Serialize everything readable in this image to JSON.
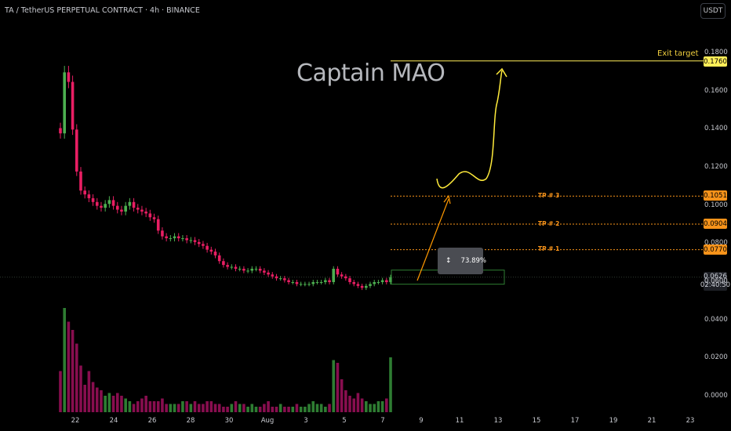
{
  "header": {
    "symbol_title": "TA / TetherUS PERPETUAL CONTRACT · 4h · BINANCE",
    "currency": "USDT"
  },
  "watermark": "Captain MAO",
  "annotations": {
    "exit_target": "Exit target",
    "tp_levels": [
      "TP # 3",
      "TP # 2",
      "TP # 1"
    ],
    "percent_change": "73.89%"
  },
  "price_labels": {
    "exit": "0.1760",
    "tp3": "0.1051",
    "tp2": "0.0904",
    "tp1": "0.0770",
    "last_price": "0.0626",
    "countdown": "02:40:50"
  },
  "colors": {
    "background": "#000000",
    "up": "#4caf50",
    "down": "#e91e63",
    "exit_line": "#ffee58",
    "tp_line": "#f7931a",
    "arrow": "#ff9800",
    "target_curve": "#ffeb3b"
  },
  "chart_data": {
    "type": "candlestick",
    "title": "TA / TetherUS PERPETUAL CONTRACT · 4h · BINANCE",
    "y_axis": {
      "ticks": [
        "0.1800",
        "0.1600",
        "0.1400",
        "0.1200",
        "0.1000",
        "0.0800",
        "0.0600",
        "0.0400",
        "0.0200",
        "0.0000"
      ],
      "ylim": [
        0,
        0.18
      ]
    },
    "x_axis": {
      "ticks": [
        "22",
        "24",
        "26",
        "28",
        "30",
        "Aug",
        "3",
        "5",
        "7",
        "9",
        "11",
        "13",
        "15",
        "17",
        "19",
        "21",
        "23"
      ]
    },
    "close_series": [
      0.138,
      0.17,
      0.165,
      0.14,
      0.118,
      0.108,
      0.106,
      0.104,
      0.102,
      0.1,
      0.099,
      0.101,
      0.103,
      0.1,
      0.098,
      0.097,
      0.1,
      0.102,
      0.099,
      0.098,
      0.097,
      0.096,
      0.094,
      0.093,
      0.087,
      0.084,
      0.083,
      0.083,
      0.084,
      0.083,
      0.083,
      0.082,
      0.082,
      0.081,
      0.08,
      0.079,
      0.077,
      0.076,
      0.074,
      0.071,
      0.069,
      0.068,
      0.068,
      0.067,
      0.067,
      0.066,
      0.066,
      0.067,
      0.067,
      0.066,
      0.065,
      0.064,
      0.063,
      0.062,
      0.062,
      0.061,
      0.06,
      0.06,
      0.059,
      0.059,
      0.059,
      0.059,
      0.06,
      0.06,
      0.06,
      0.061,
      0.06,
      0.067,
      0.064,
      0.063,
      0.062,
      0.06,
      0.059,
      0.058,
      0.057,
      0.058,
      0.059,
      0.06,
      0.06,
      0.061,
      0.06,
      0.0626
    ],
    "volume_series": [
      15,
      38,
      33,
      30,
      25,
      17,
      10,
      15,
      11,
      9,
      8,
      6,
      7,
      6,
      7,
      6,
      5,
      4,
      3,
      4,
      5,
      6,
      4,
      4,
      4,
      5,
      3,
      3,
      3,
      3,
      4,
      4,
      3,
      4,
      3,
      3,
      4,
      4,
      3,
      3,
      2,
      2,
      3,
      4,
      3,
      3,
      2,
      3,
      2,
      2,
      3,
      4,
      2,
      2,
      3,
      2,
      2,
      2,
      3,
      2,
      2,
      3,
      4,
      3,
      3,
      2,
      3,
      19,
      18,
      12,
      8,
      6,
      5,
      7,
      5,
      4,
      3,
      3,
      4,
      4,
      5,
      20
    ],
    "levels": [
      {
        "label": "Exit target",
        "value": 0.176
      },
      {
        "label": "TP # 3",
        "value": 0.1051
      },
      {
        "label": "TP # 2",
        "value": 0.0904
      },
      {
        "label": "TP # 1",
        "value": 0.077
      }
    ],
    "last_price": 0.0626
  }
}
